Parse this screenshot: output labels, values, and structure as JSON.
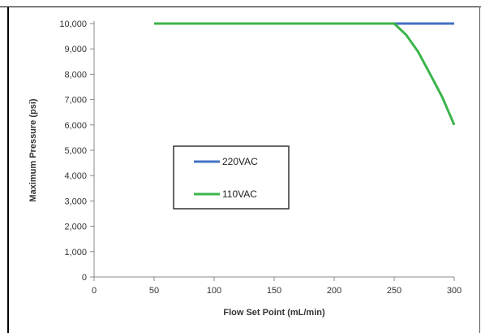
{
  "chart_data": {
    "type": "line",
    "title": "",
    "xlabel": "Flow Set Point (mL/min)",
    "ylabel": "Maximum Pressure (psi)",
    "xlim": [
      0,
      300
    ],
    "ylim": [
      0,
      10000
    ],
    "xticks": [
      0,
      50,
      100,
      150,
      200,
      250,
      300
    ],
    "xtick_labels": [
      "0",
      "50",
      "100",
      "150",
      "200",
      "250",
      "300"
    ],
    "yticks": [
      0,
      1000,
      2000,
      3000,
      4000,
      5000,
      6000,
      7000,
      8000,
      9000,
      10000
    ],
    "ytick_labels": [
      "0",
      "1,000",
      "2,000",
      "3,000",
      "4,000",
      "5,000",
      "6,000",
      "7,000",
      "8,000",
      "9,000",
      "10,000"
    ],
    "grid": false,
    "legend_position": "center-left",
    "series": [
      {
        "name": "220VAC",
        "color": "#4472c4",
        "x": [
          50,
          300
        ],
        "y": [
          10000,
          10000
        ]
      },
      {
        "name": "110VAC",
        "color": "#3cb44b",
        "x": [
          50,
          250,
          260,
          270,
          280,
          290,
          300
        ],
        "y": [
          10000,
          10000,
          9550,
          8880,
          8000,
          7100,
          6000
        ]
      }
    ]
  }
}
